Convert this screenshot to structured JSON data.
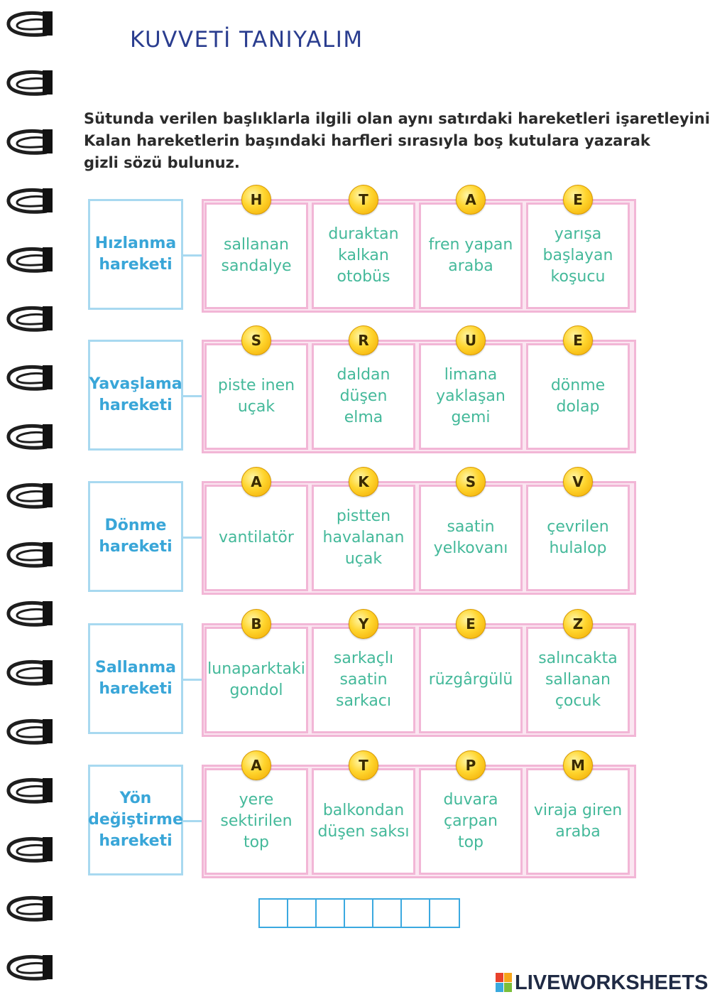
{
  "title": "KUVVETİ TANIYALIM",
  "instructions": [
    "Sütunda verilen başlıklarla ilgili olan aynı satırdaki hareketleri işaretleyiniz.",
    "Kalan hareketlerin başındaki harfleri sırasıyla boş kutulara yazarak",
    "gizli sözü bulunuz."
  ],
  "rows": [
    {
      "label": [
        "Hızlanma",
        "hareketi"
      ],
      "cells": [
        {
          "letter": "H",
          "text": [
            "sallanan",
            "sandalye"
          ]
        },
        {
          "letter": "T",
          "text": [
            "duraktan",
            "kalkan",
            "otobüs"
          ]
        },
        {
          "letter": "A",
          "text": [
            "fren yapan",
            "araba"
          ]
        },
        {
          "letter": "E",
          "text": [
            "yarışa",
            "başlayan",
            "koşucu"
          ]
        }
      ]
    },
    {
      "label": [
        "Yavaşlama",
        "hareketi"
      ],
      "cells": [
        {
          "letter": "S",
          "text": [
            "piste inen",
            "uçak"
          ]
        },
        {
          "letter": "R",
          "text": [
            "daldan",
            "düşen",
            "elma"
          ]
        },
        {
          "letter": "U",
          "text": [
            "limana",
            "yaklaşan",
            "gemi"
          ]
        },
        {
          "letter": "E",
          "text": [
            "dönme",
            "dolap"
          ]
        }
      ]
    },
    {
      "label": [
        "Dönme",
        "hareketi"
      ],
      "cells": [
        {
          "letter": "A",
          "text": [
            "vantilatör"
          ]
        },
        {
          "letter": "K",
          "text": [
            "pistten",
            "havalanan",
            "uçak"
          ]
        },
        {
          "letter": "S",
          "text": [
            "saatin",
            "yelkovanı"
          ]
        },
        {
          "letter": "V",
          "text": [
            "çevrilen",
            "hulalop"
          ]
        }
      ]
    },
    {
      "label": [
        "Sallanma",
        "hareketi"
      ],
      "cells": [
        {
          "letter": "B",
          "text": [
            "lunaparktaki",
            "gondol"
          ]
        },
        {
          "letter": "Y",
          "text": [
            "sarkaçlı",
            "saatin",
            "sarkacı"
          ]
        },
        {
          "letter": "E",
          "text": [
            "rüzgârgülü"
          ]
        },
        {
          "letter": "Z",
          "text": [
            "salıncakta",
            "sallanan",
            "çocuk"
          ]
        }
      ]
    },
    {
      "label": [
        "Yön",
        "değiştirme",
        "hareketi"
      ],
      "cells": [
        {
          "letter": "A",
          "text": [
            "yere",
            "sektirilen",
            "top"
          ]
        },
        {
          "letter": "T",
          "text": [
            "balkondan",
            "düşen saksı"
          ]
        },
        {
          "letter": "P",
          "text": [
            "duvara",
            "çarpan",
            "top"
          ]
        },
        {
          "letter": "M",
          "text": [
            "viraja giren",
            "araba"
          ]
        }
      ]
    }
  ],
  "answer_boxes": 7,
  "logo": {
    "text": "LIVEWORKSHEETS",
    "mark_colors": [
      "#e8412c",
      "#f6a51a",
      "#3aa9de",
      "#7bbf3a"
    ]
  },
  "colors": {
    "title": "#2a3d8f",
    "label_text": "#39a6d8",
    "label_border": "#a8d9f0",
    "cell_text": "#44b99a",
    "cell_border": "#f2b6d6",
    "badge": "#ffd52e",
    "answer_border": "#3ba9e0"
  }
}
